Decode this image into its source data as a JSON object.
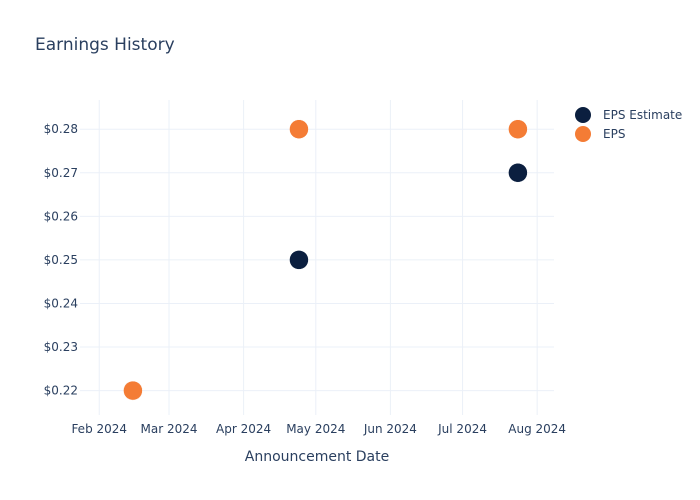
{
  "chart_data": {
    "type": "scatter",
    "title": "Earnings History",
    "xlabel": "Announcement Date",
    "ylabel": "",
    "x_ticks": [
      {
        "date": "2024-02-01",
        "label": "Feb 2024"
      },
      {
        "date": "2024-03-01",
        "label": "Mar 2024"
      },
      {
        "date": "2024-04-01",
        "label": "Apr 2024"
      },
      {
        "date": "2024-05-01",
        "label": "May 2024"
      },
      {
        "date": "2024-06-01",
        "label": "Jun 2024"
      },
      {
        "date": "2024-07-01",
        "label": "Jul 2024"
      },
      {
        "date": "2024-08-01",
        "label": "Aug 2024"
      }
    ],
    "xlim": [
      "2024-01-24",
      "2024-08-08"
    ],
    "y_ticks": [
      {
        "value": 0.22,
        "label": "$0.22"
      },
      {
        "value": 0.23,
        "label": "$0.23"
      },
      {
        "value": 0.24,
        "label": "$0.24"
      },
      {
        "value": 0.25,
        "label": "$0.25"
      },
      {
        "value": 0.26,
        "label": "$0.26"
      },
      {
        "value": 0.27,
        "label": "$0.27"
      },
      {
        "value": 0.28,
        "label": "$0.28"
      }
    ],
    "ylim": [
      0.2144,
      0.2867
    ],
    "grid": true,
    "legend_position": "top-right",
    "series": [
      {
        "name": "EPS Estimate",
        "color": "#0b1f3f",
        "points": [
          {
            "x": "2024-02-15",
            "y": 0.22
          },
          {
            "x": "2024-04-24",
            "y": 0.25
          },
          {
            "x": "2024-07-24",
            "y": 0.27
          }
        ]
      },
      {
        "name": "EPS",
        "color": "#f47c35",
        "points": [
          {
            "x": "2024-02-15",
            "y": 0.22
          },
          {
            "x": "2024-04-24",
            "y": 0.28
          },
          {
            "x": "2024-07-24",
            "y": 0.28
          }
        ]
      }
    ]
  }
}
